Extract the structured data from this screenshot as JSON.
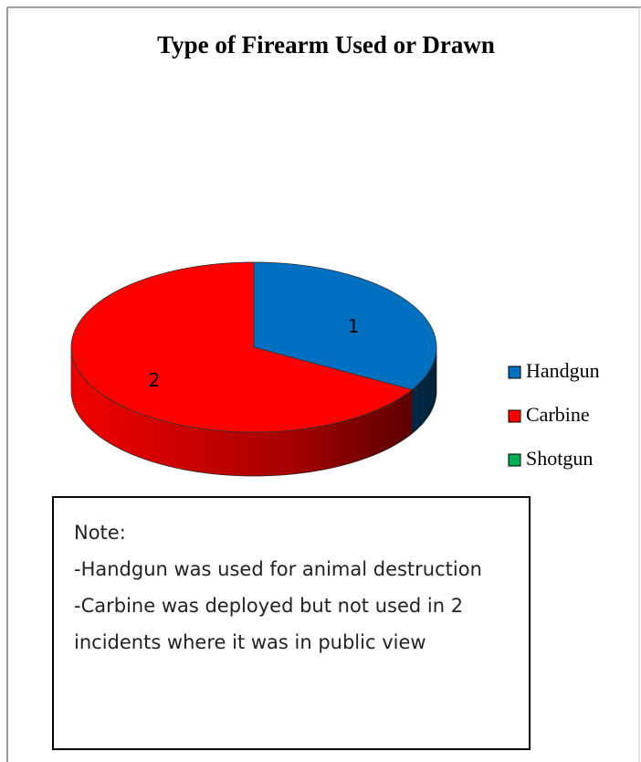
{
  "chart_data": {
    "type": "pie",
    "title": "Type of Firearm Used or Drawn",
    "categories": [
      "Handgun",
      "Carbine",
      "Shotgun"
    ],
    "values": [
      1,
      2,
      0
    ],
    "colors": [
      "#0070c0",
      "#ff0000",
      "#00b050"
    ],
    "legend": "right",
    "note": {
      "title": "Note:",
      "lines": [
        "-Handgun was used for animal destruction",
        "-Carbine was deployed but not used in 2 incidents where it was in public view"
      ]
    }
  }
}
